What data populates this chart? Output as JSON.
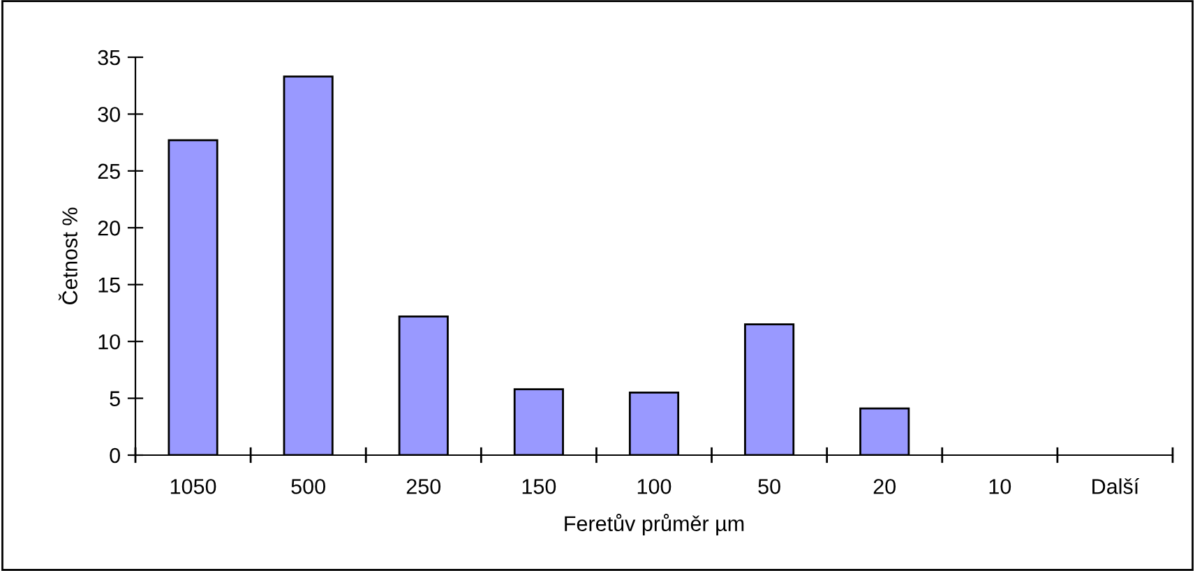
{
  "chart_data": {
    "type": "bar",
    "xlabel": "Feretův průměr µm",
    "ylabel": "Četnost %",
    "categories": [
      "1050",
      "500",
      "250",
      "150",
      "100",
      "50",
      "20",
      "10",
      "Další"
    ],
    "values": [
      27.7,
      33.3,
      12.2,
      5.8,
      5.5,
      11.5,
      4.1,
      0,
      0
    ],
    "color": "#9999ff",
    "ylim": [
      0,
      35
    ],
    "yticks": [
      0,
      5,
      10,
      15,
      20,
      25,
      30,
      35
    ],
    "grid": false,
    "legend": false
  }
}
